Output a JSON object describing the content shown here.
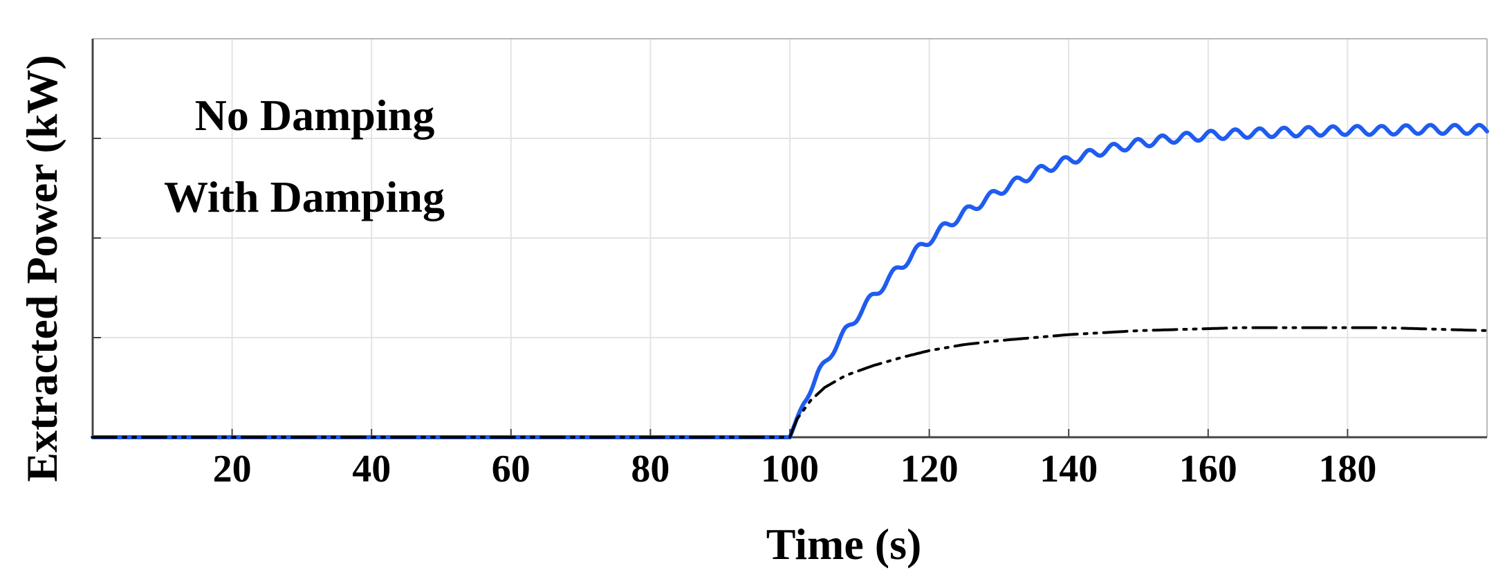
{
  "chart_data": {
    "type": "line",
    "xlabel": "Time (s)",
    "ylabel": "Extracted Power (kW)",
    "xlim": [
      0,
      200
    ],
    "ylim": [
      0,
      4
    ],
    "x_ticks": [
      20,
      40,
      60,
      80,
      100,
      120,
      140,
      160,
      180
    ],
    "y_ticks": [
      1,
      2,
      3
    ],
    "y_tick_labels_shown": false,
    "grid": true,
    "legend_placement": "top-left",
    "legend": [
      "No Damping",
      "With Damping"
    ],
    "series": [
      {
        "name": "No Damping",
        "color": "#1f5cf0",
        "style": "solid",
        "oscillation_amplitude": 0.045,
        "oscillation_period_s": 3.5,
        "x": [
          0,
          100,
          102,
          104,
          106,
          108,
          110,
          112,
          115,
          118,
          120,
          122,
          125,
          128,
          130,
          133,
          136,
          140,
          145,
          150,
          155,
          160,
          165,
          170,
          175,
          180,
          185,
          190,
          195,
          198,
          200
        ],
        "y": [
          0,
          0,
          0.35,
          0.62,
          0.86,
          1.06,
          1.25,
          1.42,
          1.65,
          1.86,
          1.98,
          2.1,
          2.25,
          2.38,
          2.47,
          2.58,
          2.68,
          2.78,
          2.88,
          2.95,
          3.0,
          3.03,
          3.05,
          3.06,
          3.07,
          3.08,
          3.08,
          3.09,
          3.09,
          3.09,
          3.09
        ]
      },
      {
        "name": "With Damping",
        "color": "#000000",
        "style": "dash-dot",
        "x": [
          0,
          100,
          101,
          103,
          105,
          108,
          112,
          116,
          120,
          125,
          130,
          135,
          140,
          145,
          150,
          155,
          160,
          165,
          170,
          175,
          180,
          185,
          190,
          195,
          200
        ],
        "y": [
          0,
          0,
          0.18,
          0.37,
          0.5,
          0.62,
          0.72,
          0.8,
          0.87,
          0.93,
          0.97,
          1.0,
          1.03,
          1.05,
          1.07,
          1.08,
          1.09,
          1.1,
          1.1,
          1.1,
          1.1,
          1.1,
          1.09,
          1.08,
          1.07
        ]
      }
    ]
  }
}
